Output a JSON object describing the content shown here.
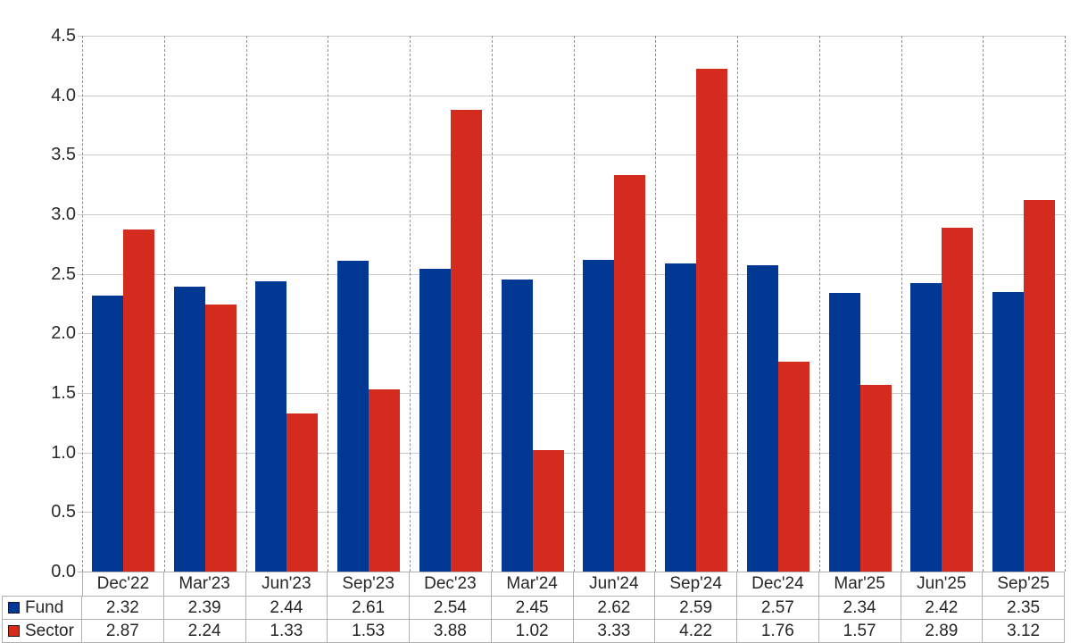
{
  "chart_data": {
    "type": "bar",
    "title": "",
    "xlabel": "",
    "ylabel": "",
    "categories": [
      "Dec'22",
      "Mar'23",
      "Jun'23",
      "Sep'23",
      "Dec'23",
      "Mar'24",
      "Jun'24",
      "Sep'24",
      "Dec'24",
      "Mar'25",
      "Jun'25",
      "Sep'25"
    ],
    "series": [
      {
        "name": "Fund",
        "color": "#003894",
        "values": [
          2.32,
          2.39,
          2.44,
          2.61,
          2.54,
          2.45,
          2.62,
          2.59,
          2.57,
          2.34,
          2.42,
          2.35
        ]
      },
      {
        "name": "Sector",
        "color": "#d32b1e",
        "values": [
          2.87,
          2.24,
          1.33,
          1.53,
          3.88,
          1.02,
          3.33,
          4.22,
          1.76,
          1.57,
          2.89,
          3.12
        ]
      }
    ],
    "y_axis": {
      "min": 0,
      "max": 4.5,
      "step": 0.5,
      "tick_labels": [
        "0.0",
        "0.5",
        "1.0",
        "1.5",
        "2.0",
        "2.5",
        "3.0",
        "3.5",
        "4.0",
        "4.5"
      ]
    },
    "grid": {
      "horizontal": "solid",
      "vertical": "dashed"
    },
    "legend": {
      "position": "table-left",
      "labels": [
        "Fund",
        "Sector"
      ]
    },
    "value_format": "2-decimals"
  }
}
